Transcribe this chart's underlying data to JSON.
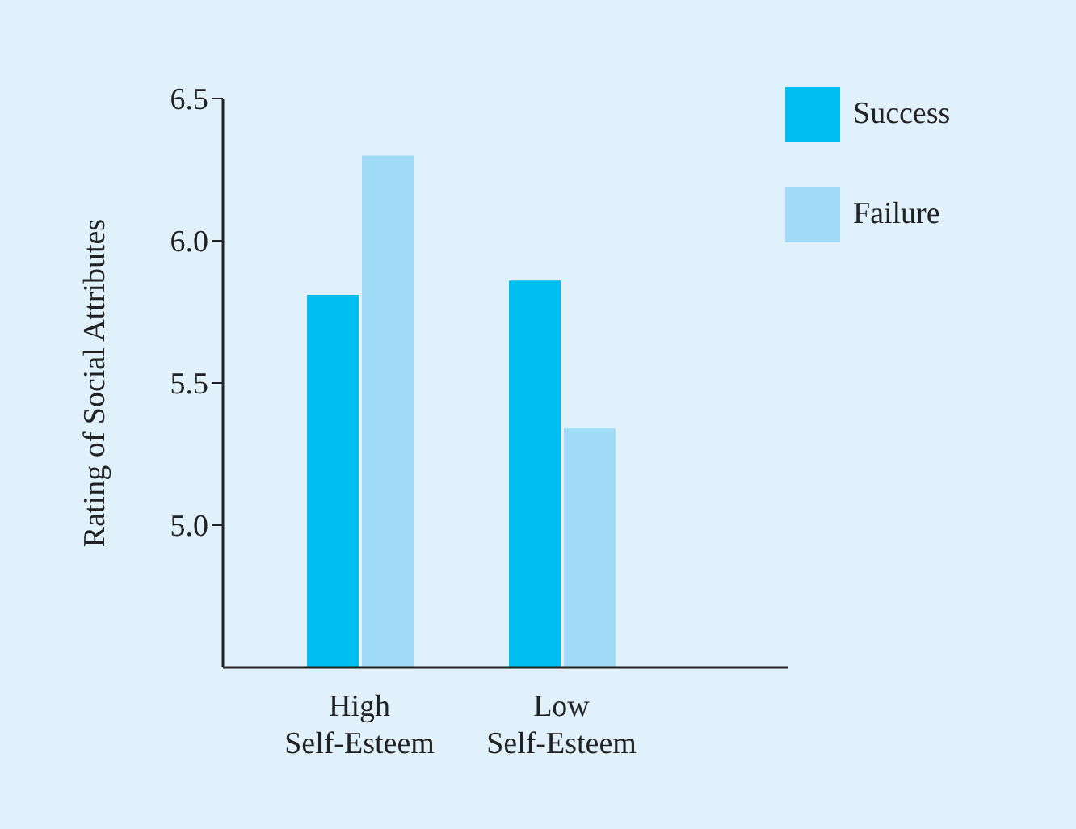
{
  "chart_data": {
    "type": "bar",
    "ylabel": "Rating of Social Attributes",
    "categories": [
      "High\nSelf-Esteem",
      "Low\nSelf-Esteem"
    ],
    "series": [
      {
        "name": "Success",
        "color": "#00bff0",
        "values": [
          5.81,
          5.86
        ]
      },
      {
        "name": "Failure",
        "color": "#9fdbf6",
        "values": [
          6.3,
          5.34
        ]
      }
    ],
    "ylim": [
      4.5,
      6.5
    ],
    "yticks": [
      {
        "value": 5,
        "label": "5.0"
      },
      {
        "value": 5.5,
        "label": "5.5"
      },
      {
        "value": 6,
        "label": "6.0"
      },
      {
        "value": 6.5,
        "label": "6.5"
      }
    ],
    "legend": "top right",
    "grid": false
  }
}
